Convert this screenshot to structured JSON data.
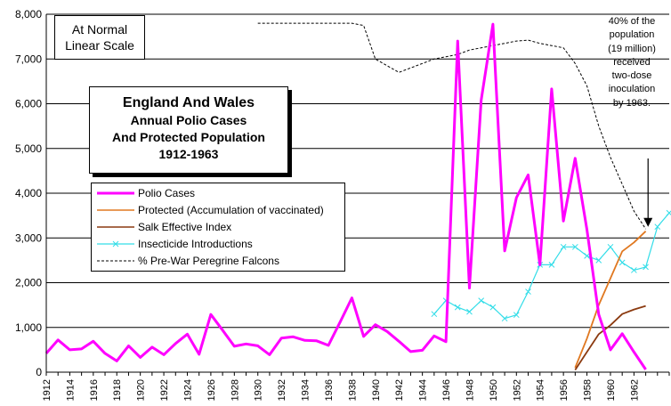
{
  "annotations": {
    "scale_lines": [
      "At Normal",
      "Linear Scale"
    ],
    "title_line1": "England And Wales",
    "title_lines": [
      "Annual Polio Cases",
      "And Protected Population",
      "1912-1963"
    ],
    "note_lines": [
      "40% of the",
      "population",
      "(19 million)",
      "received",
      "two-dose",
      "inoculation",
      "by 1963."
    ]
  },
  "chart_data": {
    "type": "line",
    "title": "England And Wales Annual Polio Cases And Protected Population 1912-1963",
    "xlabel": "",
    "ylabel": "",
    "xlim": [
      1912,
      1965
    ],
    "ylim": [
      0,
      8000
    ],
    "y_ticks": [
      0,
      1000,
      2000,
      3000,
      4000,
      5000,
      6000,
      7000,
      8000
    ],
    "y_tick_labels": [
      "0",
      "1,000",
      "2,000",
      "3,000",
      "4,000",
      "5,000",
      "6,000",
      "7,000",
      "8,000"
    ],
    "x_tick_labels": [
      "1912",
      "1914",
      "1916",
      "1918",
      "1920",
      "1922",
      "1924",
      "1926",
      "1928",
      "1930",
      "1932",
      "1934",
      "1936",
      "1938",
      "1940",
      "1942",
      "1944",
      "1946",
      "1948",
      "1950",
      "1952",
      "1954",
      "1956",
      "1958",
      "1960",
      "1962"
    ],
    "grid": "horizontal",
    "legend_position": "center-left",
    "series": [
      {
        "name": "Polio Cases",
        "color": "#ff00ff",
        "style": "solid-thick",
        "x": [
          1912,
          1913,
          1914,
          1915,
          1916,
          1917,
          1918,
          1919,
          1920,
          1921,
          1922,
          1923,
          1924,
          1925,
          1926,
          1927,
          1928,
          1929,
          1930,
          1931,
          1932,
          1933,
          1934,
          1935,
          1936,
          1937,
          1938,
          1939,
          1940,
          1941,
          1942,
          1943,
          1944,
          1945,
          1946,
          1947,
          1948,
          1949,
          1950,
          1951,
          1952,
          1953,
          1954,
          1955,
          1956,
          1957,
          1958,
          1959,
          1960,
          1961,
          1962,
          1963
        ],
        "values": [
          420,
          720,
          500,
          520,
          690,
          420,
          250,
          590,
          330,
          560,
          390,
          640,
          850,
          400,
          1290,
          940,
          580,
          630,
          590,
          390,
          760,
          790,
          710,
          700,
          600,
          1120,
          1660,
          800,
          1060,
          910,
          690,
          460,
          490,
          810,
          680,
          7400,
          1880,
          6080,
          7780,
          2710,
          3900,
          4410,
          2400,
          6330,
          3380,
          4780,
          3190,
          1290,
          500,
          860,
          450,
          60
        ]
      },
      {
        "name": "Protected (Accumulation of vaccinated)",
        "color": "#e07820",
        "style": "solid",
        "x": [
          1957,
          1958,
          1959,
          1960,
          1961,
          1962,
          1963
        ],
        "values": [
          100,
          750,
          1500,
          2100,
          2700,
          2900,
          3150
        ]
      },
      {
        "name": "Salk Effective Index",
        "color": "#8b3a10",
        "style": "solid",
        "x": [
          1957,
          1958,
          1959,
          1960,
          1961,
          1962,
          1963
        ],
        "values": [
          50,
          450,
          850,
          1050,
          1300,
          1400,
          1480
        ]
      },
      {
        "name": "Insecticide Introductions",
        "color": "#33dde8",
        "style": "solid-x-markers",
        "x": [
          1945,
          1946,
          1947,
          1948,
          1949,
          1950,
          1951,
          1952,
          1953,
          1954,
          1955,
          1956,
          1957,
          1958,
          1959,
          1960,
          1961,
          1962,
          1963,
          1964,
          1965
        ],
        "values": [
          1300,
          1600,
          1450,
          1350,
          1600,
          1450,
          1200,
          1280,
          1800,
          2400,
          2400,
          2800,
          2800,
          2600,
          2500,
          2800,
          2450,
          2280,
          2350,
          3250,
          3560
        ]
      },
      {
        "name": "% Pre-War Peregrine Falcons",
        "color": "#000000",
        "style": "dashed",
        "x": [
          1930,
          1932,
          1934,
          1936,
          1938,
          1939,
          1940,
          1941,
          1942,
          1943,
          1944,
          1945,
          1946,
          1947,
          1948,
          1949,
          1950,
          1951,
          1952,
          1953,
          1954,
          1955,
          1956,
          1957,
          1958,
          1959,
          1960,
          1961,
          1962,
          1963
        ],
        "values": [
          7800,
          7800,
          7800,
          7800,
          7800,
          7750,
          7000,
          6850,
          6700,
          6800,
          6900,
          7000,
          7050,
          7100,
          7200,
          7250,
          7300,
          7350,
          7400,
          7420,
          7350,
          7300,
          7250,
          6900,
          6400,
          5500,
          4800,
          4200,
          3600,
          3200
        ]
      }
    ]
  }
}
